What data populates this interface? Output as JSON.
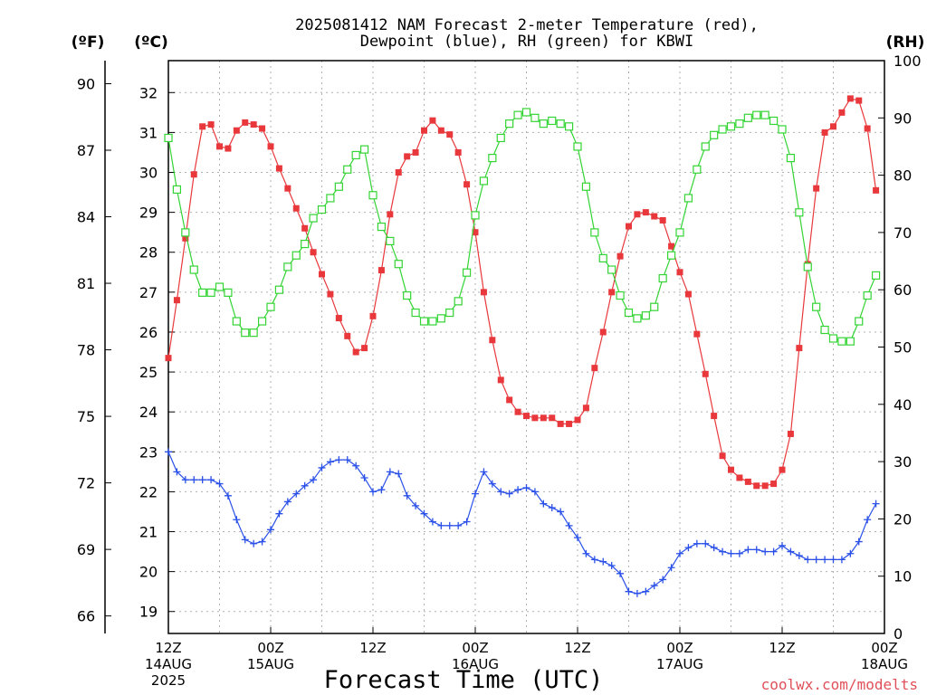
{
  "chart_data": {
    "type": "line",
    "title": [
      "2025081412 NAM Forecast 2-meter Temperature (red),",
      "Dewpoint (blue), RH (green) for KBWI"
    ],
    "xlabel": "Forecast Time (UTC)",
    "credit": "coolwx.com/modelts",
    "unit_labels": {
      "fahrenheit": "(ºF)",
      "celsius": "(ºC)",
      "rh": "(RH)"
    },
    "x_hours_from_start": [
      0,
      84
    ],
    "ylim_c": [
      18.45,
      32.8
    ],
    "ylim_rh": [
      0,
      100
    ],
    "y_ticks_c": [
      "19",
      "20",
      "21",
      "22",
      "23",
      "24",
      "25",
      "26",
      "27",
      "28",
      "29",
      "30",
      "31",
      "32"
    ],
    "y_ticks_f": [
      "66",
      "69",
      "72",
      "75",
      "78",
      "81",
      "84",
      "87",
      "90"
    ],
    "y_ticks_rh": [
      "0",
      "10",
      "20",
      "30",
      "40",
      "50",
      "60",
      "70",
      "80",
      "90",
      "100"
    ],
    "x_ticks": [
      {
        "hour": 0,
        "lines": [
          "12Z",
          "14AUG",
          "2025"
        ]
      },
      {
        "hour": 12,
        "lines": [
          "00Z",
          "15AUG"
        ]
      },
      {
        "hour": 24,
        "lines": [
          "12Z"
        ]
      },
      {
        "hour": 36,
        "lines": [
          "00Z",
          "16AUG"
        ]
      },
      {
        "hour": 48,
        "lines": [
          "12Z"
        ]
      },
      {
        "hour": 60,
        "lines": [
          "00Z",
          "17AUG"
        ]
      },
      {
        "hour": 72,
        "lines": [
          "12Z"
        ]
      },
      {
        "hour": 84,
        "lines": [
          "00Z",
          "18AUG"
        ]
      }
    ],
    "series": [
      {
        "name": "Temperature",
        "unit": "C",
        "color": "#e8383c",
        "marker": "filled-square",
        "values": [
          25.35,
          26.8,
          28.35,
          29.95,
          31.15,
          31.2,
          30.65,
          30.6,
          31.05,
          31.25,
          31.2,
          31.1,
          30.65,
          30.1,
          29.6,
          29.1,
          28.6,
          28.0,
          27.45,
          26.95,
          26.35,
          25.9,
          25.5,
          25.6,
          26.4,
          27.55,
          28.95,
          30.0,
          30.4,
          30.5,
          31.05,
          31.3,
          31.05,
          30.95,
          30.5,
          29.7,
          28.5,
          27.0,
          25.8,
          24.8,
          24.3,
          24.0,
          23.9,
          23.85,
          23.85,
          23.85,
          23.7,
          23.7,
          23.8,
          24.1,
          25.1,
          26.0,
          27.0,
          27.9,
          28.65,
          28.95,
          29.0,
          28.9,
          28.8,
          28.15,
          27.5,
          26.95,
          25.95,
          24.95,
          23.9,
          22.9,
          22.55,
          22.35,
          22.25,
          22.15,
          22.15,
          22.2,
          22.55,
          23.45,
          25.6,
          27.7,
          29.6,
          31.0,
          31.15,
          31.5,
          31.85,
          31.8,
          31.1,
          29.55
        ],
        "values_to_plot_note": ""
      },
      {
        "name": "Dewpoint",
        "unit": "C",
        "color": "#2a50e8",
        "marker": "plus",
        "values": [
          23.0,
          22.5,
          22.3,
          22.3,
          22.3,
          22.3,
          22.2,
          21.9,
          21.3,
          20.8,
          20.7,
          20.75,
          21.05,
          21.45,
          21.75,
          21.95,
          22.15,
          22.3,
          22.6,
          22.75,
          22.8,
          22.8,
          22.65,
          22.35,
          22.0,
          22.05,
          22.5,
          22.45,
          21.9,
          21.65,
          21.45,
          21.25,
          21.15,
          21.15,
          21.15,
          21.25,
          21.95,
          22.5,
          22.2,
          22.0,
          21.95,
          22.05,
          22.1,
          22.0,
          21.7,
          21.6,
          21.5,
          21.15,
          20.85,
          20.45,
          20.3,
          20.25,
          20.15,
          19.95,
          19.5,
          19.45,
          19.5,
          19.65,
          19.8,
          20.1,
          20.45,
          20.6,
          20.7,
          20.7,
          20.6,
          20.5,
          20.45,
          20.45,
          20.55,
          20.55,
          20.5,
          20.5,
          20.65,
          20.5,
          20.4,
          20.3,
          20.3,
          20.3,
          20.3,
          20.3,
          20.45,
          20.75,
          21.3,
          21.7
        ]
      },
      {
        "name": "RH",
        "unit": "%",
        "color": "#33d433",
        "marker": "open-square",
        "values": [
          86.5,
          77.5,
          70,
          63.5,
          59.5,
          59.5,
          60.5,
          59.5,
          54.5,
          52.5,
          52.5,
          54.5,
          57,
          60,
          64,
          66,
          68,
          72.5,
          74,
          76,
          78,
          81,
          83.5,
          84.5,
          76.5,
          71,
          68.5,
          64.5,
          59,
          56,
          54.5,
          54.5,
          55,
          56,
          58,
          63,
          73,
          79,
          83,
          86.5,
          89,
          90.5,
          91,
          90,
          89,
          89.5,
          89,
          88.5,
          85,
          78,
          70,
          65.5,
          63.5,
          59,
          56,
          55,
          55.5,
          57,
          62,
          66,
          70,
          76,
          81,
          85,
          87,
          88,
          88.5,
          89,
          90,
          90.5,
          90.5,
          89.5,
          88,
          83,
          73.5,
          64,
          57,
          53,
          51.5,
          51,
          51,
          54.5,
          59,
          62.5
        ],
        "values_to_plot_note": ""
      }
    ]
  }
}
